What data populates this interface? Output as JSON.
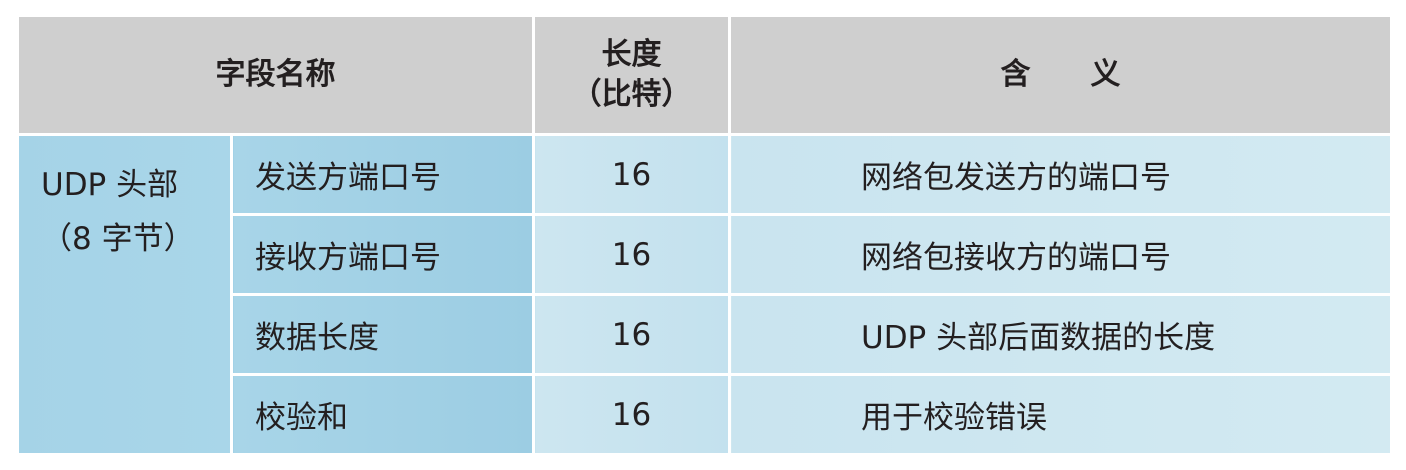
{
  "header": {
    "field_name": "字段名称",
    "length_line1": "长度",
    "length_line2": "（比特）",
    "meaning": "含　　义"
  },
  "group": {
    "line1": "UDP 头部",
    "line2": "（8 字节）"
  },
  "rows": [
    {
      "field": "发送方端口号",
      "length": "16",
      "meaning": "网络包发送方的端口号"
    },
    {
      "field": "接收方端口号",
      "length": "16",
      "meaning": "网络包接收方的端口号"
    },
    {
      "field": "数据长度",
      "length": "16",
      "meaning": "UDP 头部后面数据的长度"
    },
    {
      "field": "校验和",
      "length": "16",
      "meaning": "用于校验错误"
    }
  ],
  "colors": {
    "header_bg": "#cfcfcf",
    "field_bg": "#a5d3e7",
    "value_bg": "#cde6f0"
  }
}
